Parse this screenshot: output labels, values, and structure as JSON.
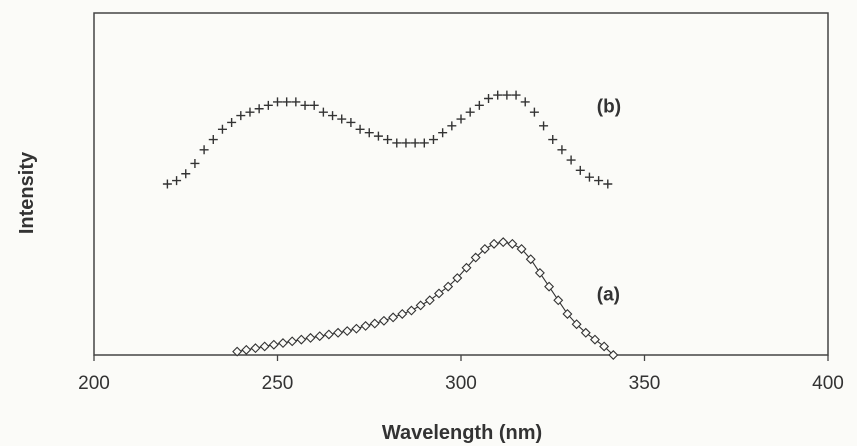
{
  "chart_data": {
    "type": "scatter",
    "title": "",
    "xlabel": "Wavelength (nm)",
    "ylabel": "Intensity",
    "xlim": [
      200,
      400
    ],
    "ylim": [
      0,
      1
    ],
    "x_ticks": [
      "200",
      "250",
      "300",
      "350",
      "400"
    ],
    "grid": false,
    "series": [
      {
        "name": "(a)",
        "marker": "diamond",
        "color": "#333333",
        "line": true,
        "label_x": 337,
        "label_y": 0.18,
        "x": [
          239,
          241.5,
          244,
          246.5,
          249,
          251.5,
          254,
          256.5,
          259,
          261.5,
          264,
          266.5,
          269,
          271.5,
          274,
          276.5,
          279,
          281.5,
          284,
          286.5,
          289,
          291.5,
          294,
          296.5,
          299,
          301.5,
          304,
          306.5,
          309,
          311.5,
          314,
          316.5,
          319,
          321.5,
          324,
          326.5,
          329,
          331.5,
          334,
          336.5,
          339,
          341.5
        ],
        "y": [
          0.01,
          0.015,
          0.02,
          0.025,
          0.03,
          0.035,
          0.04,
          0.045,
          0.05,
          0.055,
          0.06,
          0.065,
          0.07,
          0.077,
          0.085,
          0.092,
          0.1,
          0.11,
          0.12,
          0.13,
          0.145,
          0.16,
          0.18,
          0.2,
          0.225,
          0.255,
          0.285,
          0.31,
          0.325,
          0.33,
          0.325,
          0.31,
          0.28,
          0.24,
          0.2,
          0.16,
          0.12,
          0.09,
          0.065,
          0.045,
          0.025,
          0.0
        ]
      },
      {
        "name": "(b)",
        "marker": "plus",
        "color": "#333333",
        "line": false,
        "label_x": 337,
        "label_y": 0.73,
        "x": [
          220,
          222.5,
          225,
          227.5,
          230,
          232.5,
          235,
          237.5,
          240,
          242.5,
          245,
          247.5,
          250,
          252.5,
          255,
          257.5,
          260,
          262.5,
          265,
          267.5,
          270,
          272.5,
          275,
          277.5,
          280,
          282.5,
          285,
          287.5,
          290,
          292.5,
          295,
          297.5,
          300,
          302.5,
          305,
          307.5,
          310,
          312.5,
          315,
          317.5,
          320,
          322.5,
          325,
          327.5,
          330,
          332.5,
          335,
          337.5,
          340
        ],
        "y": [
          0.5,
          0.51,
          0.53,
          0.56,
          0.6,
          0.63,
          0.66,
          0.68,
          0.7,
          0.71,
          0.72,
          0.73,
          0.74,
          0.74,
          0.74,
          0.73,
          0.73,
          0.71,
          0.7,
          0.69,
          0.68,
          0.66,
          0.65,
          0.64,
          0.63,
          0.62,
          0.62,
          0.62,
          0.62,
          0.63,
          0.65,
          0.67,
          0.69,
          0.71,
          0.73,
          0.75,
          0.76,
          0.76,
          0.76,
          0.74,
          0.71,
          0.67,
          0.63,
          0.6,
          0.57,
          0.54,
          0.52,
          0.51,
          0.5
        ]
      }
    ]
  }
}
